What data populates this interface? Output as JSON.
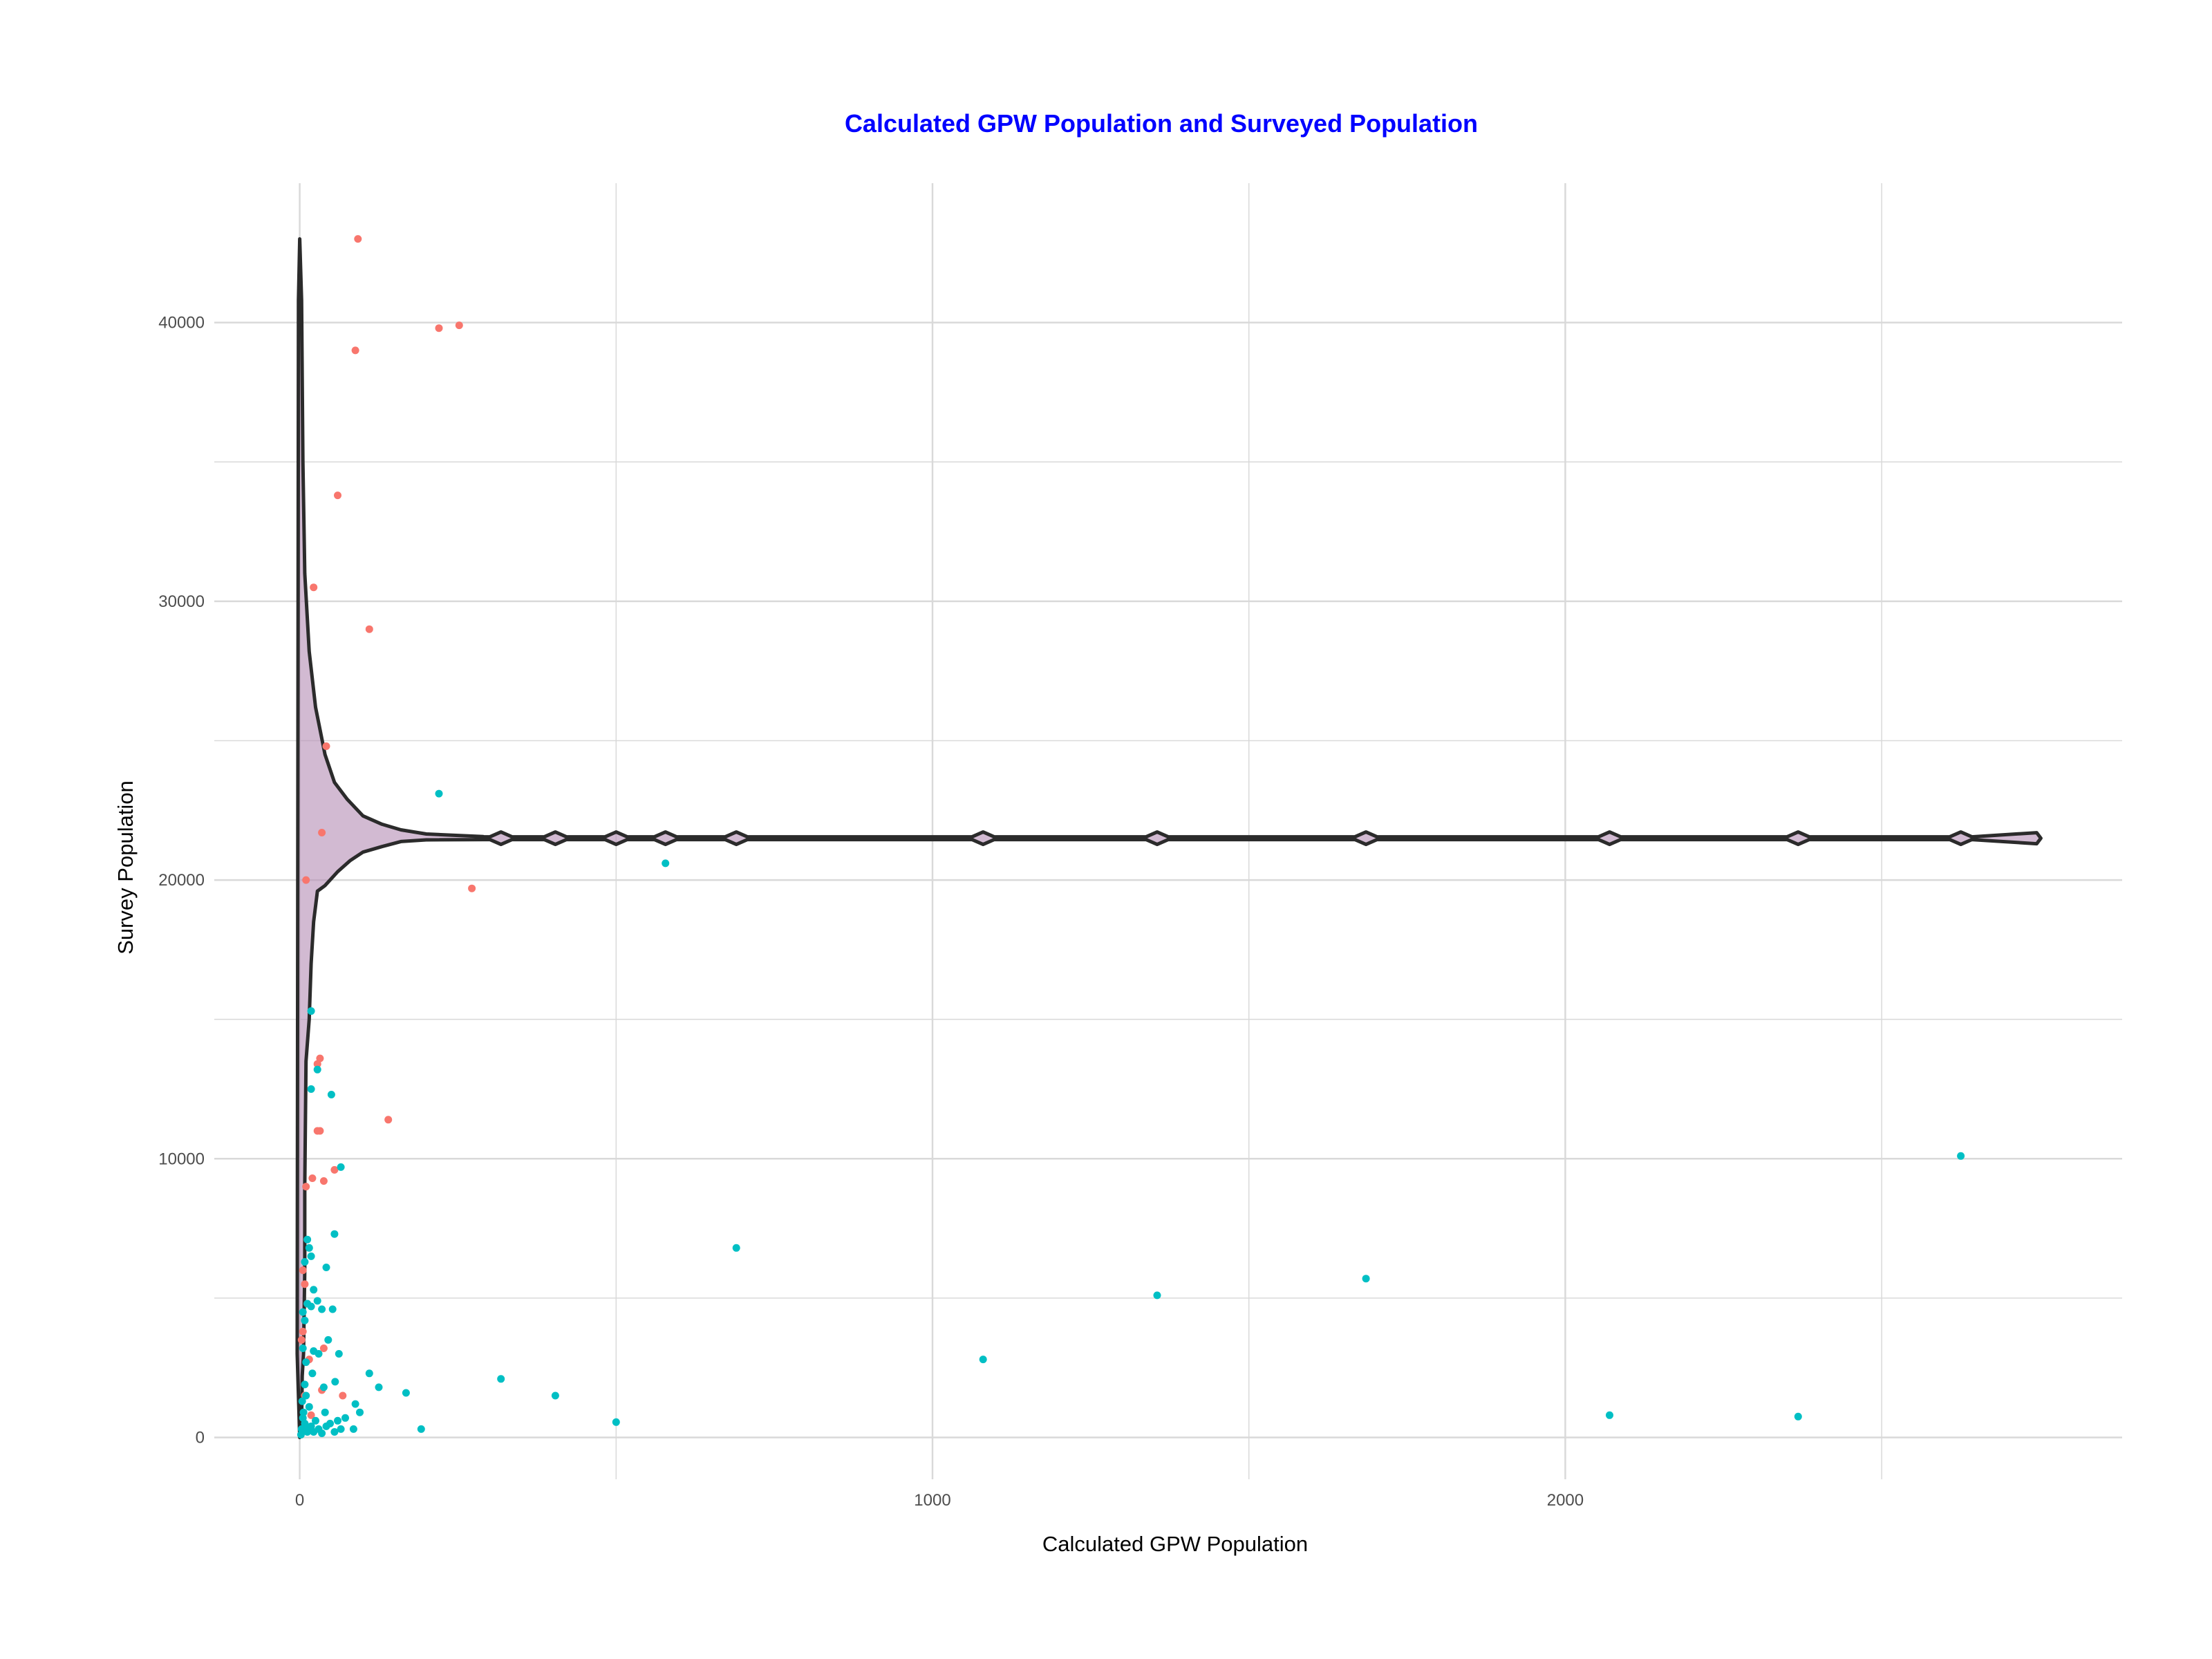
{
  "chart_data": {
    "type": "scatter",
    "title": "Calculated GPW Population and Surveyed Population",
    "xlabel": "Calculated GPW Population",
    "ylabel": "Survey Population",
    "xlim": [
      -135,
      2880
    ],
    "ylim": [
      -1500,
      45000
    ],
    "x_ticks": [
      0,
      1000,
      2000
    ],
    "x_minor_ticks": [
      500,
      1500,
      2500
    ],
    "y_ticks": [
      0,
      10000,
      20000,
      30000,
      40000
    ],
    "y_minor_ticks": [
      5000,
      15000,
      25000,
      35000
    ],
    "grid": true,
    "legend": "none",
    "colors": {
      "title": "#0000ff",
      "series_red": "#f8766d",
      "series_teal": "#00bfc4",
      "violin_fill": "#b48cb4",
      "violin_stroke": "#2b2b2b",
      "grid": "#d9d9d9"
    },
    "series": [
      {
        "color": "#f8766d",
        "points": [
          [
            92,
            43000
          ],
          [
            88,
            39000
          ],
          [
            220,
            39800
          ],
          [
            252,
            39900
          ],
          [
            60,
            33800
          ],
          [
            22,
            30500
          ],
          [
            110,
            29000
          ],
          [
            42,
            24800
          ],
          [
            35,
            21700
          ],
          [
            10,
            20000
          ],
          [
            272,
            19700
          ],
          [
            32,
            13600
          ],
          [
            28,
            13400
          ],
          [
            28,
            11000
          ],
          [
            32,
            11000
          ],
          [
            140,
            11400
          ],
          [
            55,
            9600
          ],
          [
            38,
            9200
          ],
          [
            20,
            9300
          ],
          [
            10,
            9000
          ],
          [
            5,
            6000
          ],
          [
            8,
            5500
          ],
          [
            12,
            4800
          ],
          [
            5,
            3800
          ],
          [
            3,
            3500
          ],
          [
            38,
            3200
          ],
          [
            68,
            1500
          ],
          [
            35,
            1700
          ],
          [
            15,
            2800
          ],
          [
            8,
            1500
          ],
          [
            18,
            800
          ],
          [
            10,
            400
          ]
        ]
      },
      {
        "color": "#00bfc4",
        "points": [
          [
            220,
            23100
          ],
          [
            578,
            20600
          ],
          [
            18,
            15300
          ],
          [
            28,
            13200
          ],
          [
            18,
            12500
          ],
          [
            50,
            12300
          ],
          [
            65,
            9700
          ],
          [
            2625,
            10100
          ],
          [
            55,
            7300
          ],
          [
            690,
            6800
          ],
          [
            12,
            7100
          ],
          [
            15,
            6800
          ],
          [
            18,
            6500
          ],
          [
            8,
            6300
          ],
          [
            42,
            6100
          ],
          [
            1355,
            5100
          ],
          [
            1685,
            5700
          ],
          [
            22,
            5300
          ],
          [
            12,
            4800
          ],
          [
            28,
            4900
          ],
          [
            52,
            4600
          ],
          [
            5,
            4500
          ],
          [
            18,
            4700
          ],
          [
            35,
            4600
          ],
          [
            8,
            4200
          ],
          [
            45,
            3500
          ],
          [
            22,
            3100
          ],
          [
            30,
            3000
          ],
          [
            62,
            3000
          ],
          [
            5,
            3200
          ],
          [
            10,
            2700
          ],
          [
            1080,
            2800
          ],
          [
            110,
            2300
          ],
          [
            20,
            2300
          ],
          [
            318,
            2100
          ],
          [
            56,
            2000
          ],
          [
            8,
            1900
          ],
          [
            125,
            1800
          ],
          [
            168,
            1600
          ],
          [
            38,
            1800
          ],
          [
            404,
            1500
          ],
          [
            88,
            1200
          ],
          [
            2070,
            800
          ],
          [
            2368,
            750
          ],
          [
            500,
            550
          ],
          [
            95,
            900
          ],
          [
            72,
            700
          ],
          [
            40,
            900
          ],
          [
            15,
            1100
          ],
          [
            25,
            600
          ],
          [
            5,
            700
          ],
          [
            3,
            300
          ],
          [
            8,
            500
          ],
          [
            12,
            200
          ],
          [
            18,
            400
          ],
          [
            30,
            300
          ],
          [
            48,
            500
          ],
          [
            55,
            200
          ],
          [
            65,
            300
          ],
          [
            85,
            300
          ],
          [
            192,
            300
          ],
          [
            2,
            100
          ],
          [
            6,
            900
          ],
          [
            4,
            1300
          ],
          [
            10,
            1500
          ],
          [
            14,
            300
          ],
          [
            22,
            200
          ],
          [
            35,
            150
          ],
          [
            42,
            400
          ],
          [
            60,
            600
          ]
        ]
      }
    ],
    "violin": {
      "center_y": 21500,
      "x_extent": [
        0,
        2745
      ],
      "profile": [
        [
          0,
          0
        ],
        [
          3,
          500
        ],
        [
          4,
          2200
        ],
        [
          6,
          3000
        ],
        [
          8,
          6000
        ],
        [
          8,
          9000
        ],
        [
          10,
          13500
        ],
        [
          15,
          15000
        ],
        [
          18,
          17000
        ],
        [
          22,
          18500
        ],
        [
          28,
          19600
        ],
        [
          40,
          19800
        ],
        [
          60,
          20300
        ],
        [
          80,
          20700
        ],
        [
          100,
          21000
        ],
        [
          130,
          21200
        ],
        [
          160,
          21380
        ],
        [
          200,
          21440
        ],
        [
          290,
          21450
        ],
        [
          2745,
          21470
        ]
      ],
      "upper_profile": [
        [
          0,
          43000
        ],
        [
          3,
          40800
        ],
        [
          5,
          35000
        ],
        [
          8,
          31000
        ],
        [
          15,
          28200
        ],
        [
          25,
          26200
        ],
        [
          40,
          24500
        ],
        [
          55,
          23500
        ],
        [
          75,
          22900
        ],
        [
          100,
          22300
        ],
        [
          130,
          22000
        ],
        [
          160,
          21800
        ],
        [
          200,
          21650
        ],
        [
          290,
          21560
        ],
        [
          2745,
          21530
        ]
      ],
      "bulges_x": [
        175,
        222,
        255,
        318,
        404,
        500,
        578,
        690,
        1080,
        1355,
        1685,
        2070,
        2368,
        2625
      ]
    }
  }
}
